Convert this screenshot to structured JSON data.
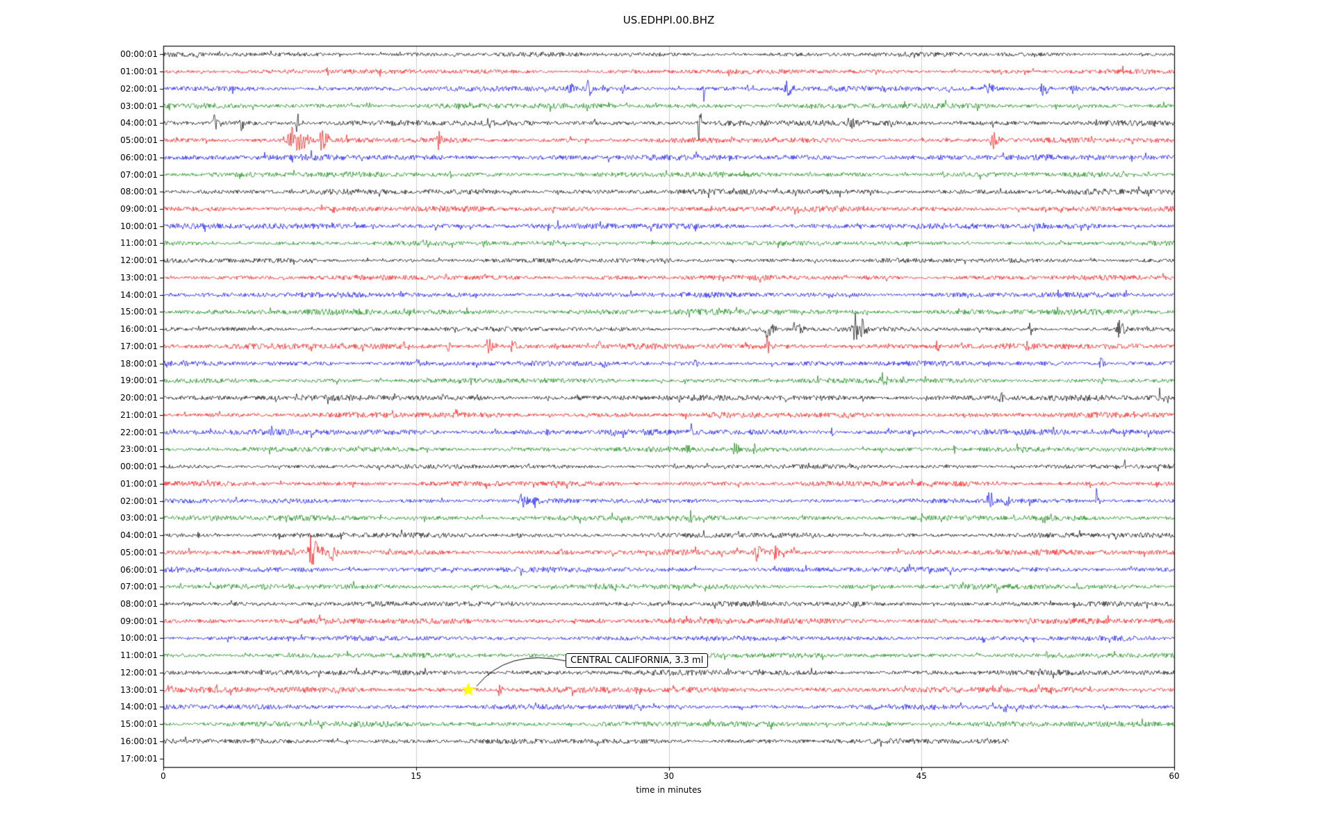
{
  "title": "US.EDHPI.00.BHZ",
  "xlabel": "time in minutes",
  "annotation": {
    "text": "CENTRAL CALIFORNIA, 3.3 ml"
  },
  "chart_data": {
    "type": "line",
    "subtype": "helicorder-dayplot",
    "station_id": "US.EDHPI.00.BHZ",
    "x_range_minutes": [
      0,
      60
    ],
    "x_ticks": [
      0,
      15,
      30,
      45,
      60
    ],
    "grid_x": [
      15,
      30,
      45
    ],
    "grid_color": "#cccccc",
    "axis_color": "#000000",
    "background": "#ffffff",
    "color_cycle": [
      "#000000",
      "#ff0000",
      "#0000ff",
      "#008000"
    ],
    "noise_amp": 3,
    "rows": [
      {
        "label": "00:00:01"
      },
      {
        "label": "01:00:01"
      },
      {
        "label": "02:00:01"
      },
      {
        "label": "03:00:01"
      },
      {
        "label": "04:00:01"
      },
      {
        "label": "05:00:01"
      },
      {
        "label": "06:00:01"
      },
      {
        "label": "07:00:01"
      },
      {
        "label": "08:00:01"
      },
      {
        "label": "09:00:01"
      },
      {
        "label": "10:00:01"
      },
      {
        "label": "11:00:01"
      },
      {
        "label": "12:00:01"
      },
      {
        "label": "13:00:01"
      },
      {
        "label": "14:00:01"
      },
      {
        "label": "15:00:01"
      },
      {
        "label": "16:00:01"
      },
      {
        "label": "17:00:01"
      },
      {
        "label": "18:00:01"
      },
      {
        "label": "19:00:01"
      },
      {
        "label": "20:00:01"
      },
      {
        "label": "21:00:01"
      },
      {
        "label": "22:00:01"
      },
      {
        "label": "23:00:01"
      },
      {
        "label": "00:00:01"
      },
      {
        "label": "01:00:01"
      },
      {
        "label": "02:00:01"
      },
      {
        "label": "03:00:01"
      },
      {
        "label": "04:00:01"
      },
      {
        "label": "05:00:01"
      },
      {
        "label": "06:00:01"
      },
      {
        "label": "07:00:01"
      },
      {
        "label": "08:00:01"
      },
      {
        "label": "09:00:01"
      },
      {
        "label": "10:00:01"
      },
      {
        "label": "11:00:01"
      },
      {
        "label": "12:00:01"
      },
      {
        "label": "13:00:01"
      },
      {
        "label": "14:00:01"
      },
      {
        "label": "15:00:01"
      },
      {
        "label": "16:00:01",
        "end": 50.2
      },
      {
        "label": "17:00:01",
        "empty": true
      }
    ],
    "events": [
      {
        "row": 1,
        "t": 9.6,
        "amp": 10,
        "dur": 0.3
      },
      {
        "row": 2,
        "t": 24.0,
        "amp": 7,
        "dur": 0.5
      },
      {
        "row": 2,
        "t": 25.1,
        "amp": 11,
        "dur": 0.4
      },
      {
        "row": 2,
        "t": 27.2,
        "amp": 6,
        "dur": 0.3
      },
      {
        "row": 2,
        "t": 32.0,
        "amp": 12,
        "dur": 0.2
      },
      {
        "row": 2,
        "t": 36.8,
        "amp": 10,
        "dur": 0.8
      },
      {
        "row": 2,
        "t": 48.6,
        "amp": 7,
        "dur": 1.0
      },
      {
        "row": 2,
        "t": 52.0,
        "amp": 11,
        "dur": 0.8
      },
      {
        "row": 2,
        "t": 53.8,
        "amp": 9,
        "dur": 0.5
      },
      {
        "row": 4,
        "t": 2.8,
        "amp": 12,
        "dur": 0.6
      },
      {
        "row": 4,
        "t": 4.5,
        "amp": 10,
        "dur": 0.4
      },
      {
        "row": 4,
        "t": 7.8,
        "amp": 27,
        "dur": 0.3
      },
      {
        "row": 4,
        "t": 19.2,
        "amp": 20,
        "dur": 0.2
      },
      {
        "row": 4,
        "t": 31.7,
        "amp": 34,
        "dur": 0.3
      },
      {
        "row": 4,
        "t": 40.5,
        "amp": 7,
        "dur": 0.6
      },
      {
        "row": 5,
        "t": 7.3,
        "amp": 22,
        "dur": 1.5
      },
      {
        "row": 5,
        "t": 9.2,
        "amp": 17,
        "dur": 0.8
      },
      {
        "row": 5,
        "t": 16.2,
        "amp": 12,
        "dur": 0.4
      },
      {
        "row": 5,
        "t": 49.0,
        "amp": 12,
        "dur": 0.9
      },
      {
        "row": 16,
        "t": 35.5,
        "amp": 10,
        "dur": 1.0
      },
      {
        "row": 16,
        "t": 37.2,
        "amp": 8,
        "dur": 1.0
      },
      {
        "row": 16,
        "t": 40.8,
        "amp": 22,
        "dur": 1.2
      },
      {
        "row": 16,
        "t": 51.3,
        "amp": 9,
        "dur": 0.5
      },
      {
        "row": 16,
        "t": 56.5,
        "amp": 11,
        "dur": 0.8
      },
      {
        "row": 17,
        "t": 14.2,
        "amp": 7,
        "dur": 0.4
      },
      {
        "row": 17,
        "t": 16.8,
        "amp": 9,
        "dur": 0.3
      },
      {
        "row": 17,
        "t": 19.0,
        "amp": 10,
        "dur": 1.0
      },
      {
        "row": 17,
        "t": 20.6,
        "amp": 9,
        "dur": 0.4
      },
      {
        "row": 17,
        "t": 25.8,
        "amp": 6,
        "dur": 0.3
      },
      {
        "row": 17,
        "t": 35.8,
        "amp": 20,
        "dur": 0.2
      },
      {
        "row": 17,
        "t": 45.8,
        "amp": 7,
        "dur": 0.3
      },
      {
        "row": 17,
        "t": 51.2,
        "amp": 7,
        "dur": 0.3
      },
      {
        "row": 18,
        "t": 15.0,
        "amp": 7,
        "dur": 0.3
      },
      {
        "row": 18,
        "t": 26.0,
        "amp": 6,
        "dur": 0.4
      },
      {
        "row": 18,
        "t": 31.5,
        "amp": 5,
        "dur": 0.3
      },
      {
        "row": 18,
        "t": 55.5,
        "amp": 7,
        "dur": 0.5
      },
      {
        "row": 19,
        "t": 42.5,
        "amp": 12,
        "dur": 0.6
      },
      {
        "row": 20,
        "t": 16.5,
        "amp": 7,
        "dur": 0.3
      },
      {
        "row": 20,
        "t": 18.5,
        "amp": 7,
        "dur": 0.3
      },
      {
        "row": 20,
        "t": 49.5,
        "amp": 8,
        "dur": 0.5
      },
      {
        "row": 20,
        "t": 59.0,
        "amp": 8,
        "dur": 0.5
      },
      {
        "row": 22,
        "t": 22.5,
        "amp": 7,
        "dur": 0.5
      },
      {
        "row": 22,
        "t": 26.5,
        "amp": 7,
        "dur": 0.5
      },
      {
        "row": 22,
        "t": 31.3,
        "amp": 11,
        "dur": 0.2
      },
      {
        "row": 22,
        "t": 39.5,
        "amp": 6,
        "dur": 0.4
      },
      {
        "row": 23,
        "t": 31.0,
        "amp": 7,
        "dur": 0.3
      },
      {
        "row": 23,
        "t": 33.8,
        "amp": 9,
        "dur": 0.5
      },
      {
        "row": 23,
        "t": 35.0,
        "amp": 7,
        "dur": 0.3
      },
      {
        "row": 23,
        "t": 46.8,
        "amp": 7,
        "dur": 0.3
      },
      {
        "row": 24,
        "t": 57.0,
        "amp": 11,
        "dur": 0.2
      },
      {
        "row": 26,
        "t": 21.0,
        "amp": 10,
        "dur": 0.8
      },
      {
        "row": 26,
        "t": 21.9,
        "amp": 9,
        "dur": 0.5
      },
      {
        "row": 26,
        "t": 48.8,
        "amp": 11,
        "dur": 0.7
      },
      {
        "row": 26,
        "t": 49.9,
        "amp": 8,
        "dur": 0.4
      },
      {
        "row": 26,
        "t": 55.3,
        "amp": 11,
        "dur": 0.4
      },
      {
        "row": 27,
        "t": 31.2,
        "amp": 9,
        "dur": 0.3
      },
      {
        "row": 28,
        "t": 2.0,
        "amp": 7,
        "dur": 0.2
      },
      {
        "row": 28,
        "t": 10.5,
        "amp": 6,
        "dur": 0.3
      },
      {
        "row": 28,
        "t": 21.0,
        "amp": 6,
        "dur": 0.3
      },
      {
        "row": 28,
        "t": 24.8,
        "amp": 6,
        "dur": 0.2
      },
      {
        "row": 29,
        "t": 8.5,
        "amp": 17,
        "dur": 1.2
      },
      {
        "row": 29,
        "t": 9.8,
        "amp": 12,
        "dur": 0.6
      },
      {
        "row": 29,
        "t": 35.0,
        "amp": 10,
        "dur": 0.8
      },
      {
        "row": 29,
        "t": 36.1,
        "amp": 9,
        "dur": 0.5
      },
      {
        "row": 37,
        "t": 19.8,
        "amp": 9,
        "dur": 0.4
      },
      {
        "row": 39,
        "t": 42.8,
        "amp": 6,
        "dur": 0.3
      },
      {
        "row": 40,
        "t": 42.5,
        "amp": 6,
        "dur": 0.4
      }
    ],
    "marker": {
      "row": 37,
      "t": 18.1,
      "symbol": "star",
      "color": "#ffff00"
    },
    "annotation_target": {
      "row": 37,
      "t": 18.1
    }
  }
}
